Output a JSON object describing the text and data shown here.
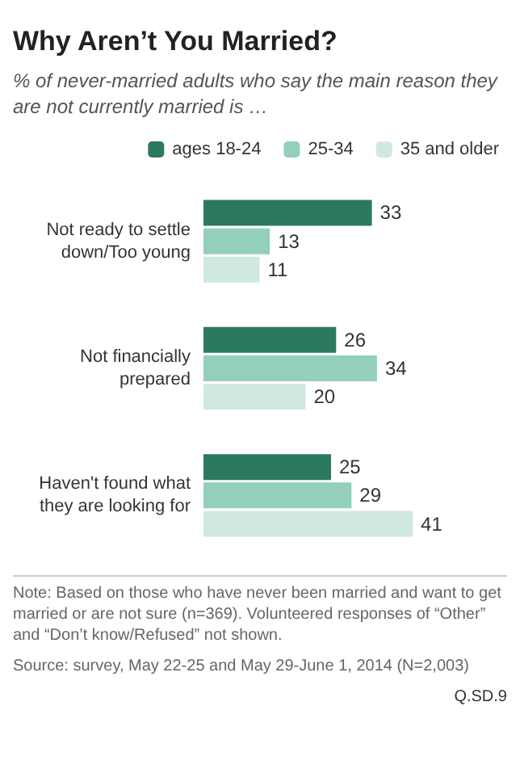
{
  "chart_data": {
    "type": "bar",
    "orientation": "horizontal",
    "title": "Why Aren’t You Married?",
    "subtitle": "% of never-married adults who say the main reason they are not currently married is …",
    "categories": [
      "Not ready to settle\ndown/Too young",
      "Not financially\nprepared",
      "Haven't found what\nthey are looking for"
    ],
    "series": [
      {
        "name": "ages 18-24",
        "color": "#2b7a5e",
        "values": [
          33,
          26,
          25
        ]
      },
      {
        "name": "25-34",
        "color": "#93cfba",
        "values": [
          13,
          34,
          29
        ]
      },
      {
        "name": "35 and older",
        "color": "#cfe9df",
        "values": [
          11,
          20,
          41
        ]
      }
    ],
    "data_labels": true,
    "legend": "top",
    "grid": false,
    "tick_labels": "y",
    "annotations": [
      "Note: Based on those who have never been married and want to get married or are not sure (n=369). Volunteered responses of “Other” and “Don’t know/Refused” not shown.",
      "Source: survey, May 22-25 and May 29-June 1, 2014 (N=2,003)",
      "Q.SD.9"
    ]
  }
}
